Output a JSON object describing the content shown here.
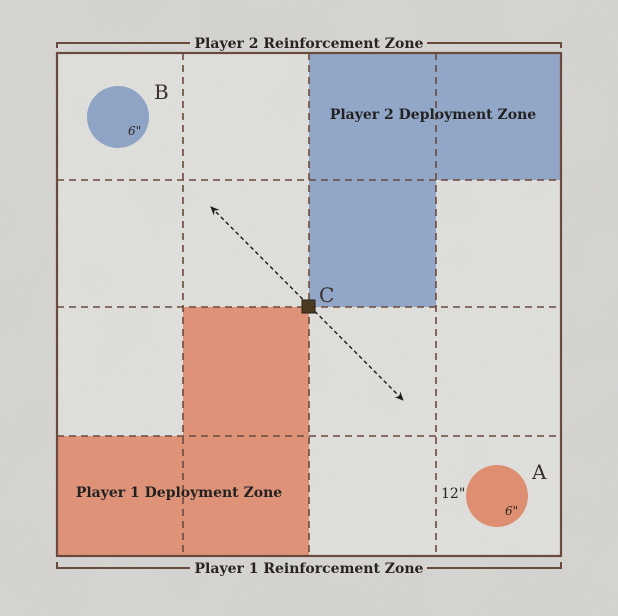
{
  "zones": {
    "top_reinforcement": "Player 2 Reinforcement Zone",
    "bottom_reinforcement": "Player 1 Reinforcement Zone",
    "p2_deployment": "Player 2 Deployment Zone",
    "p1_deployment": "Player 1 Deployment Zone"
  },
  "objectives": {
    "a": {
      "letter": "A",
      "radius": "6\""
    },
    "b": {
      "letter": "B",
      "radius": "6\""
    },
    "c": {
      "letter": "C"
    }
  },
  "measurement": "12\"",
  "colors": {
    "player1": "#de8a6c",
    "player2": "#8aa0c4",
    "border": "#6b4a3e",
    "grid": "#6b4a3e",
    "marker_c": "#4a3a20"
  }
}
